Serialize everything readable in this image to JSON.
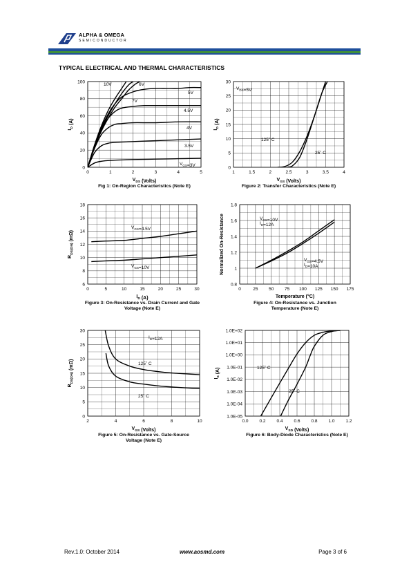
{
  "header": {
    "company": "ALPHA & OMEGA",
    "division": "SEMICONDUCTOR",
    "colors": {
      "blue": "#1f4f9c",
      "green": "#3f8f3c",
      "logo": "#1f3f8c"
    }
  },
  "section_title": "TYPICAL ELECTRICAL AND THERMAL CHARACTERISTICS",
  "footer": {
    "revision": "Rev.1.0: October 2014",
    "website": "www.aosmd.com",
    "page": "Page 3 of 6"
  },
  "chart_data": [
    {
      "id": "fig1",
      "type": "line",
      "caption": "Fig 1: On-Region Characteristics (Note E)",
      "xlabel": "V_DS (Volts)",
      "ylabel": "I_D (A)",
      "xlim": [
        0,
        5
      ],
      "ylim": [
        0,
        100
      ],
      "xticks": [
        0,
        1,
        2,
        3,
        4,
        5
      ],
      "yticks": [
        0,
        20,
        40,
        60,
        80,
        100
      ],
      "grid": true,
      "series": [
        {
          "name": "10V",
          "x": [
            0,
            0.3,
            0.6,
            0.9,
            1.2,
            1.5,
            1.7
          ],
          "y": [
            0,
            26,
            48,
            66,
            80,
            92,
            100
          ]
        },
        {
          "name": "7V",
          "x": [
            0,
            0.3,
            0.6,
            0.9,
            1.2,
            1.5,
            1.8,
            2.0
          ],
          "y": [
            0,
            24,
            44,
            60,
            74,
            86,
            96,
            100
          ]
        },
        {
          "name": "6V",
          "x": [
            0,
            0.3,
            0.6,
            0.9,
            1.2,
            1.5,
            1.8,
            2.1,
            2.3
          ],
          "y": [
            0,
            23,
            42,
            57,
            70,
            80,
            90,
            97,
            100
          ]
        },
        {
          "name": "5V",
          "x": [
            0,
            0.3,
            0.6,
            0.9,
            1.2,
            1.5,
            2.0,
            2.5,
            3.0,
            3.5,
            4.0,
            4.5,
            5.0
          ],
          "y": [
            0,
            25,
            46,
            62,
            74,
            82,
            88,
            91,
            92,
            92,
            92,
            93,
            93
          ]
        },
        {
          "name": "4.5V",
          "x": [
            0,
            0.3,
            0.6,
            0.9,
            1.2,
            1.5,
            2.0,
            2.5,
            3.0,
            4.0,
            5.0
          ],
          "y": [
            0,
            24,
            44,
            57,
            65,
            69,
            71,
            72,
            72,
            72,
            72
          ]
        },
        {
          "name": "4V",
          "x": [
            0,
            0.3,
            0.6,
            0.9,
            1.2,
            1.5,
            2.0,
            3.0,
            4.0,
            5.0
          ],
          "y": [
            0,
            22,
            38,
            46,
            50,
            51,
            52,
            52,
            53,
            53
          ]
        },
        {
          "name": "3.5V",
          "x": [
            0,
            0.3,
            0.6,
            0.9,
            1.2,
            2.0,
            3.0,
            4.0,
            5.0
          ],
          "y": [
            0,
            17,
            25,
            28,
            29,
            30,
            31,
            32,
            33
          ]
        },
        {
          "name": "V_GS=3V",
          "x": [
            0,
            0.3,
            0.6,
            1.0,
            2.0,
            3.0,
            4.0,
            5.0
          ],
          "y": [
            0,
            5,
            7,
            8,
            9,
            9.5,
            10,
            10.5
          ]
        }
      ]
    },
    {
      "id": "fig2",
      "type": "line",
      "caption": "Figure 2: Transfer Characteristics (Note E)",
      "xlabel": "V_GS (Volts)",
      "ylabel": "I_D (A)",
      "xlim": [
        1,
        4
      ],
      "ylim": [
        0,
        30
      ],
      "xticks": [
        1,
        1.5,
        2,
        2.5,
        3,
        3.5,
        4
      ],
      "yticks": [
        0,
        5,
        10,
        15,
        20,
        25,
        30
      ],
      "grid": true,
      "annotations": [
        "V_DS=5V"
      ],
      "series": [
        {
          "name": "125°C",
          "x": [
            2.2,
            2.4,
            2.6,
            2.8,
            3.0,
            3.2,
            3.4,
            3.5
          ],
          "y": [
            0,
            0.3,
            1.8,
            5.5,
            11,
            18,
            26,
            30
          ]
        },
        {
          "name": "25°C",
          "x": [
            2.45,
            2.6,
            2.8,
            3.0,
            3.2,
            3.4,
            3.55
          ],
          "y": [
            0,
            0.5,
            3.5,
            10,
            18,
            26,
            30
          ]
        }
      ]
    },
    {
      "id": "fig3",
      "type": "line",
      "caption": "Figure 3: On-Resistance vs. Drain Current and Gate Voltage (Note E)",
      "xlabel": "I_D (A)",
      "ylabel": "R_DS(ON) (mΩ)",
      "xlim": [
        0,
        30
      ],
      "ylim": [
        6,
        18
      ],
      "xticks": [
        0,
        5,
        10,
        15,
        20,
        25,
        30
      ],
      "yticks": [
        6,
        8,
        10,
        12,
        14,
        16,
        18
      ],
      "grid": true,
      "series": [
        {
          "name": "V_GS=4.5V",
          "x": [
            1,
            5,
            10,
            15,
            20,
            25,
            30
          ],
          "y": [
            12.4,
            12.5,
            12.6,
            12.9,
            13.2,
            13.6,
            14.0
          ]
        },
        {
          "name": "V_GS=10V",
          "x": [
            1,
            5,
            10,
            15,
            20,
            25,
            30
          ],
          "y": [
            9.4,
            9.5,
            9.6,
            9.8,
            10.0,
            10.2,
            10.4
          ]
        }
      ]
    },
    {
      "id": "fig4",
      "type": "line",
      "caption": "Figure 4: On-Resistance vs. Junction Temperature (Note E)",
      "xlabel": "Temperature (°C)",
      "ylabel": "Normalized On-Resistance",
      "xlim": [
        0,
        175
      ],
      "ylim": [
        0.8,
        1.8
      ],
      "xticks": [
        0,
        25,
        50,
        75,
        100,
        125,
        150,
        175
      ],
      "yticks": [
        0.8,
        1.0,
        1.2,
        1.4,
        1.6,
        1.8
      ],
      "grid": true,
      "series": [
        {
          "name": "V_GS=10V, I_D=12A",
          "x": [
            25,
            50,
            75,
            100,
            125,
            150
          ],
          "y": [
            1.0,
            1.1,
            1.21,
            1.33,
            1.47,
            1.61
          ]
        },
        {
          "name": "V_GS=4.5V, I_D=10A",
          "x": [
            25,
            50,
            75,
            100,
            125,
            150
          ],
          "y": [
            1.0,
            1.09,
            1.19,
            1.31,
            1.44,
            1.58
          ]
        }
      ]
    },
    {
      "id": "fig5",
      "type": "line",
      "caption": "Figure 5: On-Resistance vs. Gate-Source Voltage (Note E)",
      "xlabel": "V_GS (Volts)",
      "ylabel": "R_DS(ON) (mΩ)",
      "xlim": [
        2,
        10
      ],
      "ylim": [
        0,
        30
      ],
      "xticks": [
        2,
        4,
        6,
        8,
        10
      ],
      "yticks": [
        0,
        5,
        10,
        15,
        20,
        25,
        30
      ],
      "grid": true,
      "annotations": [
        "I_D=12A"
      ],
      "series": [
        {
          "name": "125°C",
          "x": [
            3.25,
            3.5,
            4,
            5,
            6,
            7,
            8,
            9,
            10
          ],
          "y": [
            30,
            24.5,
            20,
            17.5,
            16.3,
            15.6,
            15.1,
            14.8,
            14.5
          ]
        },
        {
          "name": "25°C",
          "x": [
            3.3,
            3.5,
            4,
            5,
            6,
            7,
            8,
            9,
            10
          ],
          "y": [
            22,
            17.5,
            14,
            12,
            11.2,
            10.6,
            10.2,
            9.9,
            9.6
          ]
        }
      ]
    },
    {
      "id": "fig6",
      "type": "line",
      "caption": "Figure 6: Body-Diode Characteristics (Note E)",
      "xlabel": "V_SD (Volts)",
      "ylabel": "I_S (A)",
      "xlim": [
        0,
        1.2
      ],
      "ylim": [
        1e-05,
        100
      ],
      "yscale": "log",
      "xticks": [
        0.0,
        0.2,
        0.4,
        0.6,
        0.8,
        1.0,
        1.2
      ],
      "xticklabels": [
        "0.0",
        "0.2",
        "0.4",
        "0.6",
        "0.8",
        "1.0",
        "1.2"
      ],
      "yticks": [
        1e-05,
        0.0001,
        0.001,
        0.01,
        0.1,
        1,
        10,
        100
      ],
      "yticklabels": [
        "1.0E-05",
        "1.0E-04",
        "1.0E-03",
        "1.0E-02",
        "1.0E-01",
        "1.0E+00",
        "1.0E+01",
        "1.0E+02"
      ],
      "grid": true,
      "series": [
        {
          "name": "125°C",
          "x": [
            0.18,
            0.3,
            0.4,
            0.5,
            0.6,
            0.7,
            0.8,
            0.9,
            1.0,
            1.1
          ],
          "y": [
            1e-05,
            0.0003,
            0.005,
            0.08,
            1.2,
            10,
            40,
            70,
            90,
            100
          ]
        },
        {
          "name": "25°C",
          "x": [
            0.41,
            0.5,
            0.6,
            0.7,
            0.75,
            0.8,
            0.9,
            1.0,
            1.1
          ],
          "y": [
            1e-05,
            0.0002,
            0.004,
            0.1,
            0.8,
            5,
            40,
            80,
            100
          ]
        }
      ]
    }
  ]
}
